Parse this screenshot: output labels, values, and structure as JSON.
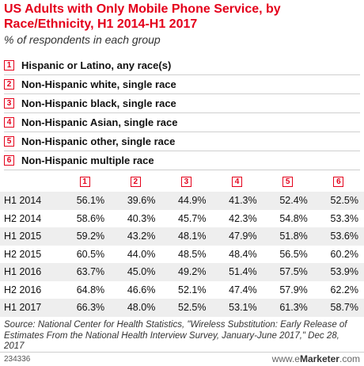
{
  "title": "US Adults with Only Mobile Phone Service, by Race/Ethnicity, H1 2014-H1 2017",
  "subtitle": "% of respondents in each group",
  "chart_data": {
    "type": "table",
    "series": [
      {
        "num": "1",
        "name": "Hispanic or Latino, any race(s)",
        "values": [
          "56.1%",
          "58.6%",
          "59.2%",
          "60.5%",
          "63.7%",
          "64.8%",
          "66.3%"
        ]
      },
      {
        "num": "2",
        "name": "Non-Hispanic white, single race",
        "values": [
          "39.6%",
          "40.3%",
          "43.2%",
          "44.0%",
          "45.0%",
          "46.6%",
          "48.0%"
        ]
      },
      {
        "num": "3",
        "name": "Non-Hispanic black, single race",
        "values": [
          "44.9%",
          "45.7%",
          "48.1%",
          "48.5%",
          "49.2%",
          "52.1%",
          "52.5%"
        ]
      },
      {
        "num": "4",
        "name": "Non-Hispanic Asian, single race",
        "values": [
          "41.3%",
          "42.3%",
          "47.9%",
          "48.4%",
          "51.4%",
          "47.4%",
          "53.1%"
        ]
      },
      {
        "num": "5",
        "name": "Non-Hispanic other, single race",
        "values": [
          "52.4%",
          "54.8%",
          "51.8%",
          "56.5%",
          "57.5%",
          "57.9%",
          "61.3%"
        ]
      },
      {
        "num": "6",
        "name": "Non-Hispanic multiple race",
        "values": [
          "52.5%",
          "53.3%",
          "53.6%",
          "60.2%",
          "53.9%",
          "62.2%",
          "58.7%"
        ]
      }
    ],
    "categories": [
      "H1 2014",
      "H2 2014",
      "H1 2015",
      "H2 2015",
      "H1 2016",
      "H2 2016",
      "H1 2017"
    ]
  },
  "source": "Source: National Center for Health Statistics, \"Wireless Substitution: Early Release of Estimates From the National Health Interview Survey, January-June 2017,\" Dec 28, 2017",
  "footer": {
    "chart_id": "234336",
    "brand_prefix": "www.",
    "brand_e": "e",
    "brand_name": "Marketer",
    "brand_suffix": ".com"
  },
  "colors": {
    "accent": "#e4001b",
    "stripe": "#eeeeee"
  }
}
